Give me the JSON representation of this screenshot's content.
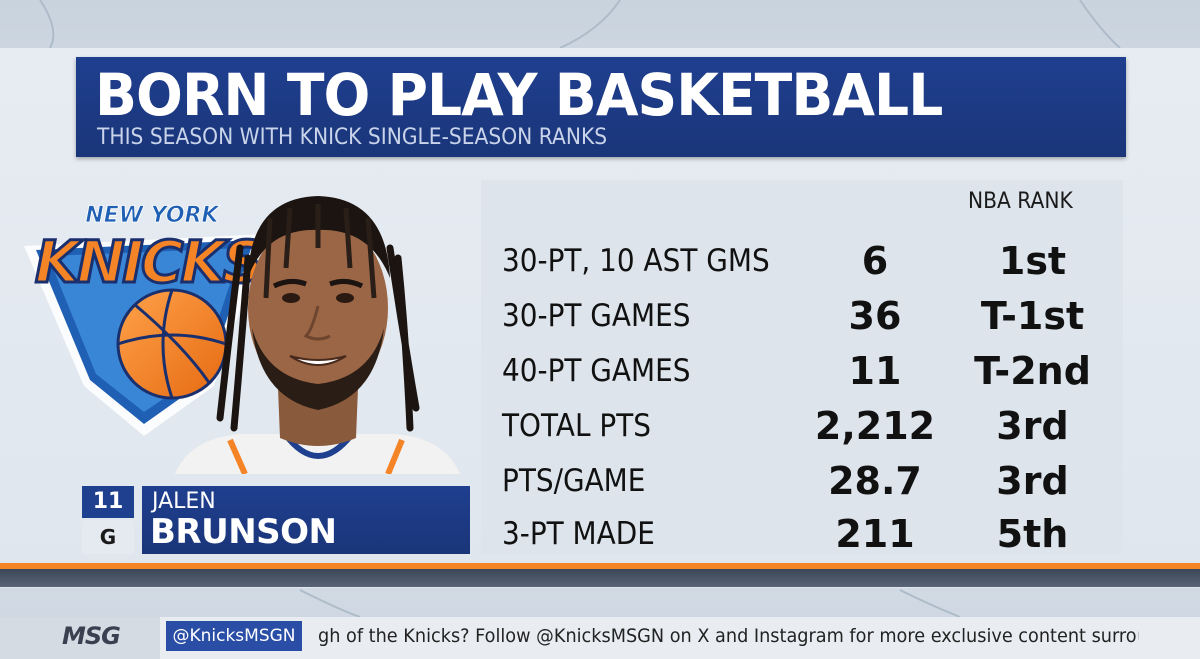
{
  "title": "BORN TO PLAY BASKETBALL",
  "subtitle": "THIS SEASON WITH KNICK SINGLE-SEASON RANKS",
  "logo": {
    "team_text_top": "NEW YORK",
    "team_text_main": "KNICKS",
    "icon": "knicks-logo-icon"
  },
  "player": {
    "number": "11",
    "position": "G",
    "first_name": "JALEN",
    "last_name": "BRUNSON"
  },
  "stats": {
    "rank_header": "NBA RANK",
    "rows": [
      {
        "label": "30-PT, 10 AST GMS",
        "value": "6",
        "rank": "1st"
      },
      {
        "label": "30-PT GAMES",
        "value": "36",
        "rank": "T-1st"
      },
      {
        "label": "40-PT GAMES",
        "value": "11",
        "rank": "T-2nd"
      },
      {
        "label": "TOTAL PTS",
        "value": "2,212",
        "rank": "3rd"
      },
      {
        "label": "PTS/GAME",
        "value": "28.7",
        "rank": "3rd"
      },
      {
        "label": "3-PT MADE",
        "value": "211",
        "rank": "5th"
      }
    ]
  },
  "ticker": {
    "network": "MSG",
    "handle": "@KnicksMSGN",
    "text": "gh of the Knicks? Follow @KnicksMSGN on X and Instagram for more exclusive content surrounding your favorite NBA te"
  },
  "colors": {
    "brand_blue": "#1f3f8f",
    "brand_orange": "#f58426"
  }
}
